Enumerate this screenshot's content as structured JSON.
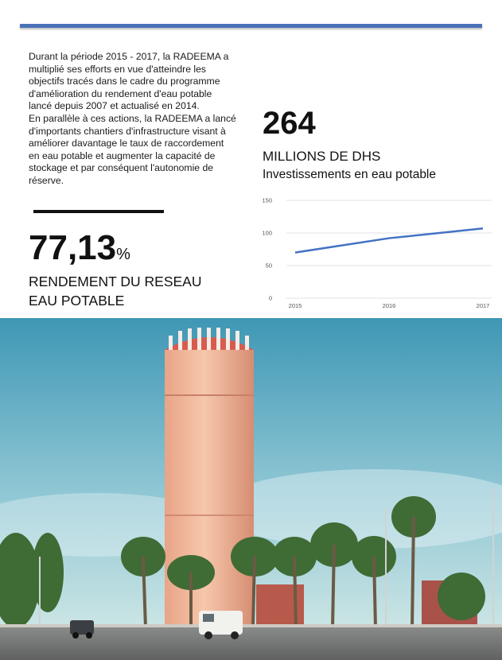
{
  "intro": {
    "paragraph1": "Durant la période 2015 - 2017, la RADEEMA a multiplié ses efforts en vue d'atteindre les objectifs tracés dans le cadre du programme d'amélioration du rendement d'eau potable lancé depuis 2007 et actualisé en 2014.",
    "paragraph2": "En parallèle à ces actions, la RADEEMA a lancé d'importants chantiers d'infrastructure visant à améliorer davantage le taux de raccordement en eau potable et augmenter la capacité de stockage et par conséquent l'autonomie de réserve."
  },
  "rendement": {
    "value": "77,13",
    "unit": "%",
    "label_line1": "RENDEMENT DU RESEAU",
    "label_line2": "EAU POTABLE"
  },
  "investissement": {
    "value": "264",
    "unit": "MILLIONS DE DHS",
    "description": "Investissements en eau potable"
  },
  "colors": {
    "accent": "#4a72b8",
    "line": "#4472c4"
  },
  "chart_data": {
    "type": "line",
    "x": [
      "2015",
      "2016",
      "2017"
    ],
    "series": [
      {
        "values": [
          70,
          92,
          107
        ]
      }
    ],
    "ylim": [
      0,
      150
    ],
    "yticks": [
      "0",
      "50",
      "100",
      "150"
    ],
    "grid": true,
    "title": "",
    "xlabel": "",
    "ylabel": ""
  },
  "photo": {
    "description_icon": "water-tower-photo"
  }
}
